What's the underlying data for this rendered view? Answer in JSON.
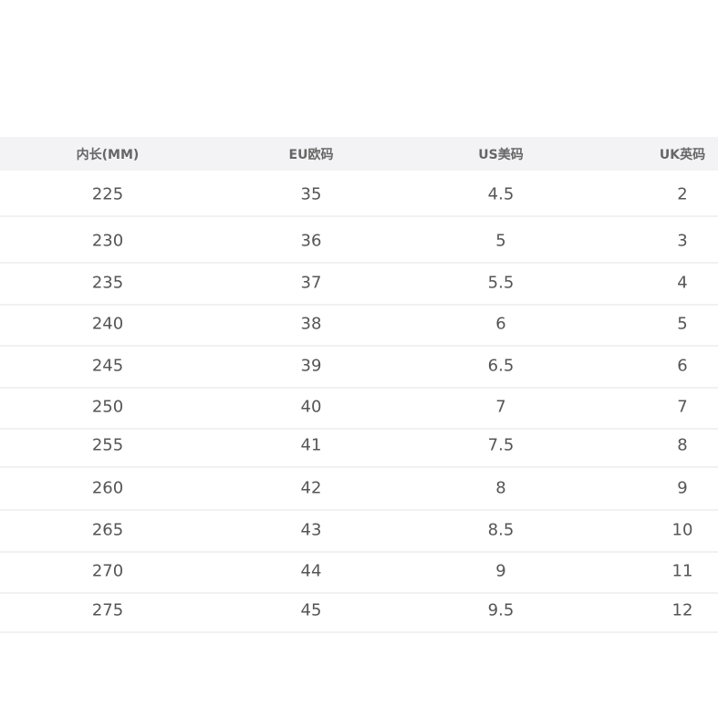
{
  "table": {
    "headers": [
      "内长(MM)",
      "EU欧码",
      "US美码",
      "UK英码"
    ],
    "rows": [
      [
        "225",
        "35",
        "4.5",
        "2"
      ],
      [
        "230",
        "36",
        "5",
        "3"
      ],
      [
        "235",
        "37",
        "5.5",
        "4"
      ],
      [
        "240",
        "38",
        "6",
        "5"
      ],
      [
        "245",
        "39",
        "6.5",
        "6"
      ],
      [
        "250",
        "40",
        "7",
        "7"
      ],
      [
        "255",
        "41",
        "7.5",
        "8"
      ],
      [
        "260",
        "42",
        "8",
        "9"
      ],
      [
        "265",
        "43",
        "8.5",
        "10"
      ],
      [
        "270",
        "44",
        "9",
        "11"
      ],
      [
        "275",
        "45",
        "9.5",
        "12"
      ]
    ]
  }
}
